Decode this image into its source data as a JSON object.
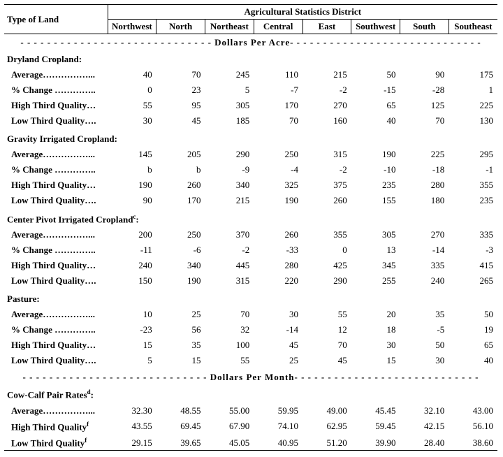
{
  "headers": {
    "type": "Type of Land",
    "group": "Agricultural Statistics District",
    "cols": [
      "Northwest",
      "North",
      "Northeast",
      "Central",
      "East",
      "Southwest",
      "South",
      "Southeast"
    ]
  },
  "banner1_text": "- - - - - - - - - - - - - - - - - - - - - - - - - - - - - Dollars Per Acre- - - - - - - - - - - - - - - - - - - - - - - - - - - - -",
  "banner2_text": "- - - - - - - - - - - - - - - - - - - - - - - - - - - - Dollars Per Month- - -  - - - - - - - - - - - - - - - - - - - - - - - - -",
  "sections": [
    {
      "title": "Dryland Cropland:",
      "rows": [
        {
          "label": "Average……………...",
          "v": [
            "40",
            "70",
            "245",
            "110",
            "215",
            "50",
            "90",
            "175"
          ]
        },
        {
          "label": "% Change …………..",
          "v": [
            "0",
            "23",
            "5",
            "-7",
            "-2",
            "-15",
            "-28",
            "1"
          ]
        },
        {
          "label": "High Third Quality…",
          "v": [
            "55",
            "95",
            "305",
            "170",
            "270",
            "65",
            "125",
            "225"
          ]
        },
        {
          "label": "Low Third Quality….",
          "v": [
            "30",
            "45",
            "185",
            "70",
            "160",
            "40",
            "70",
            "130"
          ]
        }
      ]
    },
    {
      "title": "Gravity Irrigated Cropland:",
      "rows": [
        {
          "label": "Average……………...",
          "v": [
            "145",
            "205",
            "290",
            "250",
            "315",
            "190",
            "225",
            "295"
          ]
        },
        {
          "label": "% Change …………..",
          "v": [
            "b",
            "b",
            "-9",
            "-4",
            "-2",
            "-10",
            "-18",
            "-1"
          ]
        },
        {
          "label": "High Third Quality…",
          "v": [
            "190",
            "260",
            "340",
            "325",
            "375",
            "235",
            "280",
            "355"
          ]
        },
        {
          "label": "Low Third Quality….",
          "v": [
            "90",
            "170",
            "215",
            "190",
            "260",
            "155",
            "180",
            "235"
          ]
        }
      ]
    },
    {
      "title_html": "Center Pivot Irrigated Cropland<sup>c</sup>:",
      "rows": [
        {
          "label": "Average……………...",
          "v": [
            "200",
            "250",
            "370",
            "260",
            "355",
            "305",
            "270",
            "335"
          ]
        },
        {
          "label": "% Change …………..",
          "v": [
            "-11",
            "-6",
            "-2",
            "-33",
            "0",
            "13",
            "-14",
            "-3"
          ]
        },
        {
          "label": "High Third Quality…",
          "v": [
            "240",
            "340",
            "445",
            "280",
            "425",
            "345",
            "335",
            "415"
          ]
        },
        {
          "label": "Low Third Quality….",
          "v": [
            "150",
            "190",
            "315",
            "220",
            "290",
            "255",
            "240",
            "265"
          ]
        }
      ]
    },
    {
      "title": "Pasture:",
      "rows": [
        {
          "label": "Average……………...",
          "v": [
            "10",
            "25",
            "70",
            "30",
            "55",
            "20",
            "35",
            "50"
          ]
        },
        {
          "label": "% Change …………..",
          "v": [
            "-23",
            "56",
            "32",
            "-14",
            "12",
            "18",
            "-5",
            "19"
          ]
        },
        {
          "label": "High Third Quality…",
          "v": [
            "15",
            "35",
            "100",
            "45",
            "70",
            "30",
            "50",
            "65"
          ]
        },
        {
          "label": "Low Third Quality….",
          "v": [
            "5",
            "15",
            "55",
            "25",
            "45",
            "15",
            "30",
            "40"
          ]
        }
      ]
    }
  ],
  "cowcalf": {
    "title_html": "Cow-Calf Pair Rates<sup>d</sup>:",
    "rows": [
      {
        "label": "Average……………...",
        "v": [
          "32.30",
          "48.55",
          "55.00",
          "59.95",
          "49.00",
          "45.45",
          "32.10",
          "43.00"
        ]
      },
      {
        "label_html": "High Third Quality<sup>f</sup>",
        "v": [
          "43.55",
          "69.45",
          "67.90",
          "74.10",
          "62.95",
          "59.45",
          "42.15",
          "56.10"
        ]
      },
      {
        "label_html": "Low Third Quality<sup>f</sup>",
        "v": [
          "29.15",
          "39.65",
          "45.05",
          "40.95",
          "51.20",
          "39.90",
          "28.40",
          "38.60"
        ]
      }
    ]
  }
}
